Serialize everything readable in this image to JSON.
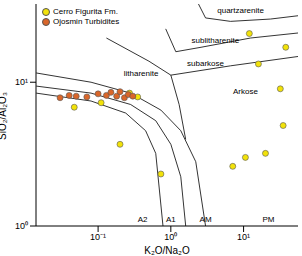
{
  "chart_data": {
    "type": "scatter",
    "x_label": "K₂O/Na₂O",
    "y_label": "SiO₂/Al₂O₃",
    "log": true,
    "grid": false,
    "legend": "upper left",
    "marker": "circle",
    "xlim": [
      0.014,
      56
    ],
    "ylim": [
      1,
      35
    ],
    "xticks": [
      {
        "value": 0.1,
        "label": "10⁻¹"
      },
      {
        "value": 1,
        "label": "10⁰"
      },
      {
        "value": 10,
        "label": "10¹"
      }
    ],
    "yticks": [
      {
        "value": 1,
        "label": "10⁰"
      },
      {
        "value": 10,
        "label": "10¹"
      }
    ],
    "series": [
      {
        "name": "Cerro Figurita Fm.",
        "color": "#f2e20a",
        "x": [
          0.047,
          0.11,
          0.27,
          0.35,
          0.2,
          0.73,
          10.6,
          7.1,
          20,
          35,
          32,
          16,
          38,
          12
        ],
        "y": [
          6.7,
          7.2,
          8.4,
          7.9,
          3.7,
          2.3,
          3.0,
          2.6,
          3.2,
          5.0,
          9.0,
          13.4,
          17.5,
          21.8
        ]
      },
      {
        "name": "Ojosmin Turbidites",
        "color": "#d9662a",
        "x": [
          0.03,
          0.04,
          0.05,
          0.07,
          0.1,
          0.13,
          0.15,
          0.18,
          0.2,
          0.23,
          0.26,
          0.3
        ],
        "y": [
          7.8,
          8.1,
          8.0,
          7.9,
          8.3,
          8.1,
          8.5,
          8.0,
          8.6,
          7.8,
          8.2,
          8.0
        ]
      }
    ],
    "lines": [
      {
        "color": "#000000",
        "x": [
          0.0141,
          0.08,
          0.28,
          0.73,
          1.37,
          2.2,
          3.0
        ],
        "y": [
          11.6,
          10,
          8.4,
          6.4,
          4.6,
          2.8,
          1
        ]
      },
      {
        "color": "#000000",
        "x": [
          0.0141,
          0.08,
          0.28,
          0.62,
          1,
          1.37,
          1.6
        ],
        "y": [
          9.4,
          8.4,
          7.0,
          5.4,
          3.7,
          2.2,
          1
        ]
      },
      {
        "color": "#000000",
        "x": [
          0.0141,
          0.08,
          0.24,
          0.45,
          0.62,
          0.78
        ],
        "y": [
          8.4,
          7.4,
          6.1,
          4.6,
          3.2,
          1
        ]
      },
      {
        "color": "#000000",
        "x": [
          2.4,
          3.0,
          6.6,
          23.4,
          56
        ],
        "y": [
          35,
          28,
          26.5,
          27.5,
          29
        ]
      },
      {
        "color": "#000000",
        "x": [
          0.85,
          1.17,
          2.6,
          12.5,
          56
        ],
        "y": [
          23.5,
          16.3,
          17.5,
          20.3,
          22
        ]
      },
      {
        "color": "#000000",
        "x": [
          0.13,
          0.5,
          1,
          6.6,
          56
        ],
        "y": [
          20.3,
          14,
          11.2,
          13,
          15.1
        ]
      },
      {
        "color": "#000000",
        "x": [
          1,
          1.3,
          1.6
        ],
        "y": [
          11.2,
          7,
          4
        ]
      }
    ],
    "annotations": [
      {
        "text": "quartzarenite",
        "x": 9.1,
        "y": 31.6
      },
      {
        "text": "sublitharenite",
        "x": 4.1,
        "y": 19.7
      },
      {
        "text": "subarkose",
        "x": 3.0,
        "y": 13.5
      },
      {
        "text": "litharenite",
        "x": 0.39,
        "y": 11.6
      },
      {
        "text": "Arkose",
        "x": 10.6,
        "y": 8.7
      },
      {
        "text": "A2",
        "x": 0.41,
        "y": 1.12
      },
      {
        "text": "A1",
        "x": 1,
        "y": 1.12
      },
      {
        "text": "AM",
        "x": 3,
        "y": 1.12
      },
      {
        "text": "PM",
        "x": 22,
        "y": 1.12
      }
    ]
  }
}
